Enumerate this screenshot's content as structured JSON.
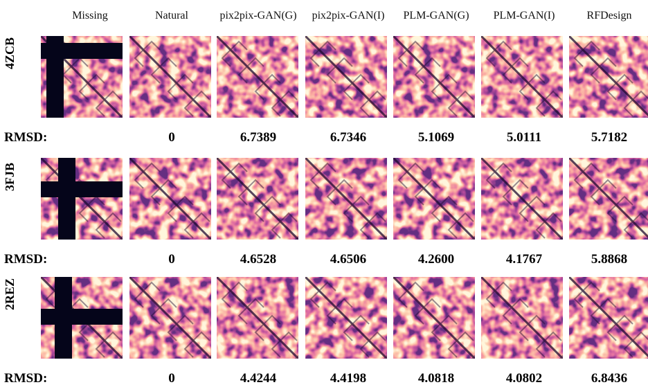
{
  "columns": [
    "Missing",
    "Natural",
    "pix2pix-GAN(G)",
    "pix2pix-GAN(I)",
    "PLM-GAN(G)",
    "PLM-GAN(I)",
    "RFDesign"
  ],
  "rows": [
    {
      "name": "4ZCB",
      "rmsd_label": "RMSD:",
      "rmsd": [
        "0",
        "6.7389",
        "6.7346",
        "5.1069",
        "5.0111",
        "5.7182"
      ]
    },
    {
      "name": "3FJB",
      "rmsd_label": "RMSD:",
      "rmsd": [
        "0",
        "4.6528",
        "4.6506",
        "4.2600",
        "4.1767",
        "5.8868"
      ]
    },
    {
      "name": "2REZ",
      "rmsd_label": "RMSD:",
      "rmsd": [
        "0",
        "4.4244",
        "4.4198",
        "4.0818",
        "4.0802",
        "6.8436"
      ]
    }
  ]
}
